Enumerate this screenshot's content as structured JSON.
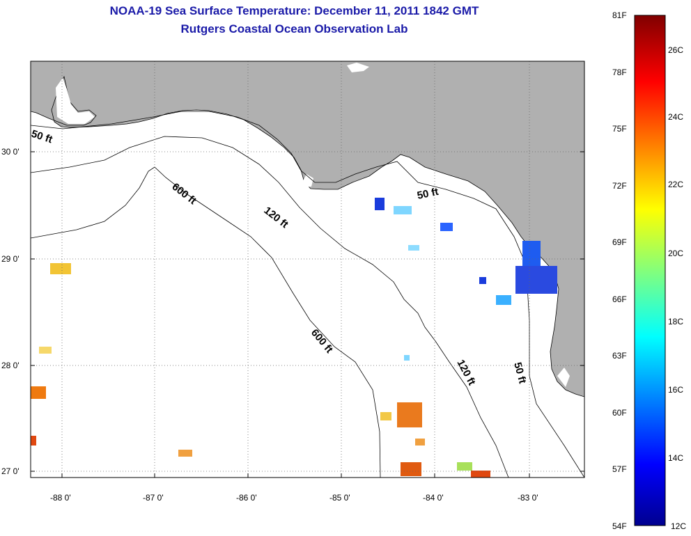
{
  "header": {
    "title": "NOAA-19 Sea Surface Temperature:  December 11, 2011 1842 GMT",
    "subtitle": "Rutgers Coastal Ocean Observation Lab"
  },
  "map": {
    "lon_ticks": [
      "-88 0'",
      "-87 0'",
      "-86 0'",
      "-85 0'",
      "-84 0'",
      "-83 0'"
    ],
    "lat_ticks": [
      "30 0'",
      "29 0'",
      "28 0'",
      "27 0'"
    ],
    "contour_labels": [
      "50 ft",
      "600 ft",
      "120 ft",
      "50 ft",
      "600 ft",
      "120 ft",
      "50 ft"
    ]
  },
  "colorbar": {
    "f_labels": [
      "81F",
      "78F",
      "75F",
      "72F",
      "69F",
      "66F",
      "63F",
      "60F",
      "57F",
      "54F"
    ],
    "c_labels": [
      "26C",
      "24C",
      "22C",
      "20C",
      "18C",
      "16C",
      "14C",
      "12C"
    ],
    "min_f": 54,
    "max_f": 81,
    "min_c": 12,
    "max_c": 27.2
  },
  "colors": {
    "land": "#b0b0b0",
    "ocean": "#ffffff",
    "title": "#1a1aa8"
  }
}
